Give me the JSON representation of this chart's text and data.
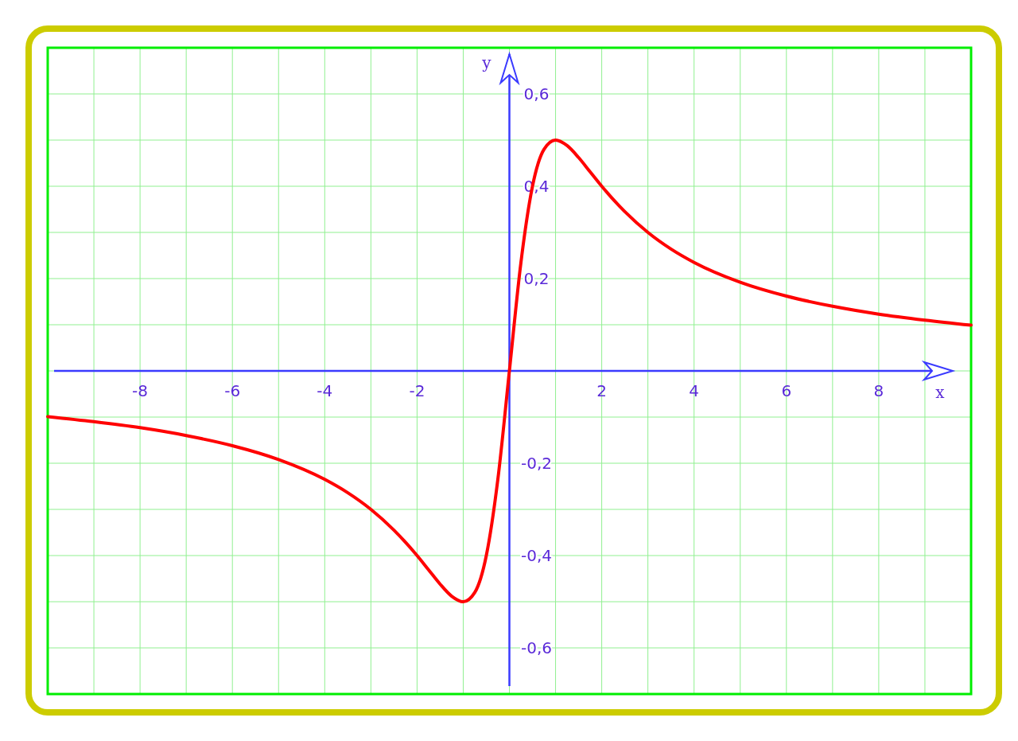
{
  "chart_data": {
    "type": "line",
    "xlabel": "x",
    "ylabel": "y",
    "x": [
      -10,
      -9,
      -8,
      -7,
      -6,
      -5,
      -4,
      -3.5,
      -3,
      -2.5,
      -2,
      -1.75,
      -1.5,
      -1.25,
      -1,
      -0.75,
      -0.5,
      -0.25,
      0,
      0.25,
      0.5,
      0.75,
      1,
      1.25,
      1.5,
      1.75,
      2,
      2.5,
      3,
      3.5,
      4,
      5,
      6,
      7,
      8,
      9,
      10
    ],
    "values": [
      -0.099,
      -0.11,
      -0.123,
      -0.14,
      -0.162,
      -0.192,
      -0.235,
      -0.264,
      -0.3,
      -0.345,
      -0.4,
      -0.431,
      -0.462,
      -0.488,
      -0.5,
      -0.48,
      -0.4,
      -0.235,
      0,
      0.235,
      0.4,
      0.48,
      0.5,
      0.488,
      0.462,
      0.431,
      0.4,
      0.345,
      0.3,
      0.264,
      0.235,
      0.192,
      0.162,
      0.14,
      0.123,
      0.11,
      0.099
    ],
    "color": "#ff0000",
    "xlim": [
      -10,
      10
    ],
    "ylim": [
      -0.7,
      0.7
    ],
    "xticks": [
      {
        "value": -9,
        "label": null
      },
      -8,
      {
        "value": -7,
        "label": null
      },
      -6,
      {
        "value": -5,
        "label": null
      },
      -4,
      {
        "value": -3,
        "label": null
      },
      -2,
      {
        "value": -1,
        "label": null
      },
      {
        "value": 0,
        "label": null
      },
      {
        "value": 1,
        "label": null
      },
      2,
      {
        "value": 3,
        "label": null
      },
      4,
      {
        "value": 5,
        "label": null
      },
      6,
      {
        "value": 7,
        "label": null
      },
      8,
      {
        "value": 9,
        "label": null
      }
    ],
    "yticks": [
      {
        "value": -0.6,
        "label": "-0,6"
      },
      {
        "value": -0.5,
        "label": null
      },
      {
        "value": -0.4,
        "label": "-0,4"
      },
      {
        "value": -0.3,
        "label": null
      },
      {
        "value": -0.2,
        "label": "-0,2"
      },
      {
        "value": -0.1,
        "label": null
      },
      {
        "value": 0,
        "label": null
      },
      {
        "value": 0.1,
        "label": null
      },
      {
        "value": 0.2,
        "label": "0,2"
      },
      {
        "value": 0.3,
        "label": null
      },
      {
        "value": 0.4,
        "label": "0,4"
      },
      {
        "value": 0.5,
        "label": null
      },
      {
        "value": 0.6,
        "label": "0,6"
      }
    ],
    "grid": true
  }
}
